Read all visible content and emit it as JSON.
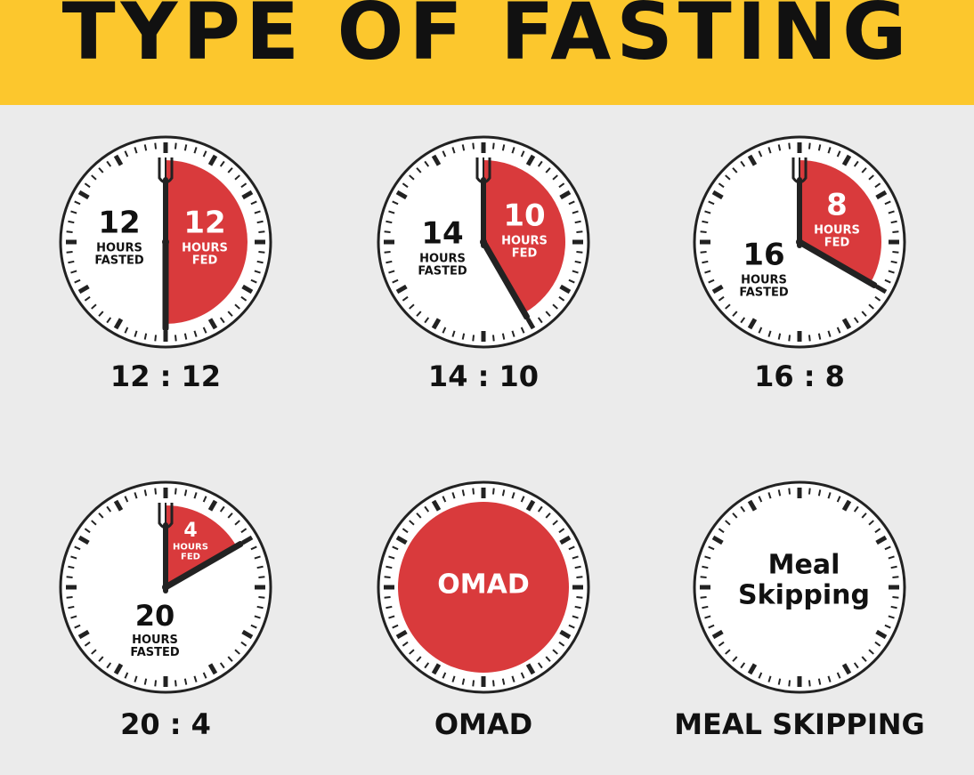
{
  "header": {
    "title": "TYPE OF FASTING"
  },
  "clocks": [
    {
      "fasted_hours": 12,
      "fasted_label_1": "HOURS",
      "fasted_label_2": "FASTED",
      "fed_hours": 12,
      "fed_label_1": "HOURS",
      "fed_label_2": "FED",
      "caption": "12 : 12"
    },
    {
      "fasted_hours": 14,
      "fasted_label_1": "HOURS",
      "fasted_label_2": "FASTED",
      "fed_hours": 10,
      "fed_label_1": "HOURS",
      "fed_label_2": "FED",
      "caption": "14 : 10"
    },
    {
      "fasted_hours": 16,
      "fasted_label_1": "HOURS",
      "fasted_label_2": "FASTED",
      "fed_hours": 8,
      "fed_label_1": "HOURS",
      "fed_label_2": "FED",
      "caption": "16 : 8"
    },
    {
      "fasted_hours": 20,
      "fasted_label_1": "HOURS",
      "fasted_label_2": "FASTED",
      "fed_hours": 4,
      "fed_label_1": "HOURS",
      "fed_label_2": "FED",
      "caption": "20 : 4"
    },
    {
      "center_text": "OMAD",
      "caption": "OMAD"
    },
    {
      "center_lines": [
        "Meal",
        "Skipping"
      ],
      "caption": "MEAL SKIPPING"
    }
  ]
}
